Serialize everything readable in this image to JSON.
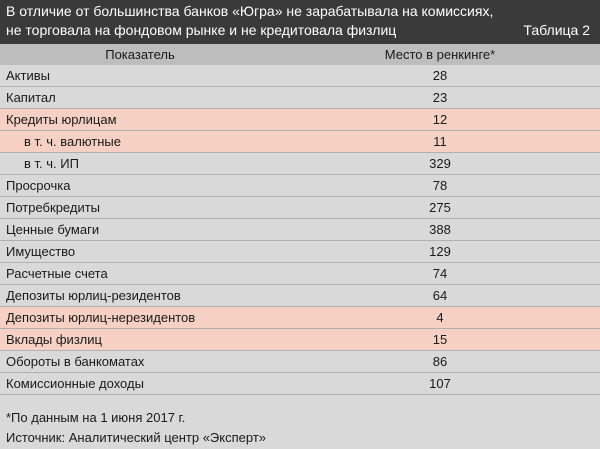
{
  "header": {
    "line1": "В отличие от большинства банков «Югра» не зарабатывала на комиссиях,",
    "line2": "не торговала на фондовом рынке и не кредитовала физлиц",
    "table_label": "Таблица 2"
  },
  "columns": {
    "indicator": "Показатель",
    "rank": "Место в ренкинге*"
  },
  "colors": {
    "header_bg": "#3a3a3a",
    "table_bg": "#d9d9d9",
    "highlight_bg": "#f7d0c4"
  },
  "rows": [
    {
      "name": "Активы",
      "value": "28",
      "highlight": false,
      "sub": false
    },
    {
      "name": "Капитал",
      "value": "23",
      "highlight": false,
      "sub": false
    },
    {
      "name": "Кредиты юрлицам",
      "value": "12",
      "highlight": true,
      "sub": false
    },
    {
      "name": "в т. ч. валютные",
      "value": "11",
      "highlight": true,
      "sub": true
    },
    {
      "name": "в т. ч. ИП",
      "value": "329",
      "highlight": false,
      "sub": true
    },
    {
      "name": "Просрочка",
      "value": "78",
      "highlight": false,
      "sub": false
    },
    {
      "name": "Потребкредиты",
      "value": "275",
      "highlight": false,
      "sub": false
    },
    {
      "name": "Ценные бумаги",
      "value": "388",
      "highlight": false,
      "sub": false
    },
    {
      "name": "Имущество",
      "value": "129",
      "highlight": false,
      "sub": false
    },
    {
      "name": "Расчетные счета",
      "value": "74",
      "highlight": false,
      "sub": false
    },
    {
      "name": "Депозиты юрлиц-резидентов",
      "value": "64",
      "highlight": false,
      "sub": false
    },
    {
      "name": "Депозиты юрлиц-нерезидентов",
      "value": "4",
      "highlight": true,
      "sub": false
    },
    {
      "name": "Вклады физлиц",
      "value": "15",
      "highlight": true,
      "sub": false
    },
    {
      "name": "Обороты в банкоматах",
      "value": "86",
      "highlight": false,
      "sub": false
    },
    {
      "name": "Комиссионные доходы",
      "value": "107",
      "highlight": false,
      "sub": false
    }
  ],
  "footnote": "*По данным на 1 июня 2017 г.",
  "source": "Источник: Аналитический центр «Эксперт»"
}
